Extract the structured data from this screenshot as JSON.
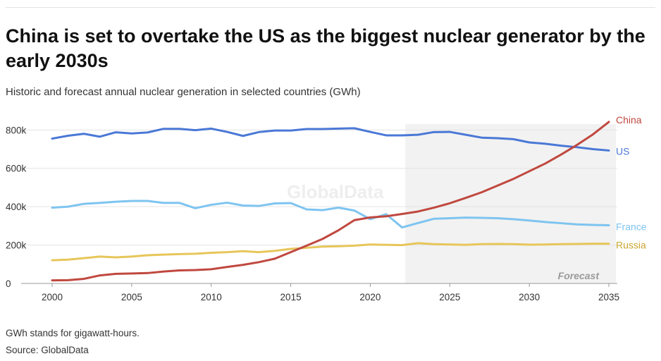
{
  "header": {
    "title": "China is set to overtake the US as the biggest nuclear generator by the early 2030s",
    "subtitle": "Historic and forecast annual nuclear generation in selected countries (GWh)"
  },
  "footer": {
    "footnote": "GWh stands for gigawatt-hours.",
    "source": "Source: GlobalData"
  },
  "watermark": "GlobalData",
  "chart_data": {
    "type": "line",
    "title": "China is set to overtake the US as the biggest nuclear generator by the early 2030s",
    "subtitle": "Historic and forecast annual nuclear generation in selected countries (GWh)",
    "xlabel": "",
    "ylabel": "",
    "xlim": [
      2000,
      2035
    ],
    "ylim": [
      0,
      860000
    ],
    "x_ticks": [
      2000,
      2005,
      2010,
      2015,
      2020,
      2025,
      2030,
      2035
    ],
    "y_ticks": [
      0,
      200000,
      400000,
      600000,
      800000
    ],
    "y_tick_labels": [
      "0",
      "200k",
      "400k",
      "600k",
      "800k"
    ],
    "grid": "horizontal",
    "forecast": {
      "start": 2022.2,
      "end": 2035,
      "label": "Forecast",
      "color": "#f2f2f2"
    },
    "x": [
      2000,
      2001,
      2002,
      2003,
      2004,
      2005,
      2006,
      2007,
      2008,
      2009,
      2010,
      2011,
      2012,
      2013,
      2014,
      2015,
      2016,
      2017,
      2018,
      2019,
      2020,
      2021,
      2022,
      2023,
      2024,
      2025,
      2026,
      2027,
      2028,
      2029,
      2030,
      2031,
      2032,
      2033,
      2034,
      2035
    ],
    "series": [
      {
        "name": "US",
        "color": "#4a78d6",
        "values": [
          755000,
          770000,
          780000,
          765000,
          788000,
          782000,
          787000,
          806000,
          806000,
          799000,
          807000,
          790000,
          769000,
          789000,
          797000,
          797000,
          805000,
          805000,
          807000,
          809000,
          790000,
          772000,
          772000,
          775000,
          789000,
          790000,
          775000,
          760000,
          757000,
          752000,
          735000,
          728000,
          718000,
          710000,
          700000,
          693000
        ]
      },
      {
        "name": "China",
        "color": "#c0483f",
        "values": [
          16000,
          17000,
          24000,
          42000,
          50000,
          52000,
          54000,
          62000,
          68000,
          70000,
          74000,
          86000,
          97000,
          111000,
          129000,
          163000,
          197000,
          232000,
          277000,
          330000,
          344000,
          350000,
          362000,
          375000,
          395000,
          418000,
          446000,
          475000,
          510000,
          545000,
          585000,
          625000,
          672000,
          722000,
          777000,
          842000
        ]
      },
      {
        "name": "France",
        "color": "#7ec4f0",
        "values": [
          395000,
          400000,
          415000,
          420000,
          426000,
          430000,
          430000,
          420000,
          420000,
          392000,
          410000,
          421000,
          406000,
          404000,
          417000,
          419000,
          386000,
          382000,
          395000,
          380000,
          335000,
          361000,
          292000,
          315000,
          337000,
          340000,
          343000,
          342000,
          340000,
          335000,
          328000,
          320000,
          314000,
          308000,
          305000,
          303000
        ]
      },
      {
        "name": "Russia",
        "color": "#e7c65a",
        "values": [
          121000,
          124000,
          132000,
          140000,
          136000,
          140000,
          147000,
          150000,
          153000,
          155000,
          160000,
          163000,
          168000,
          163000,
          170000,
          180000,
          186000,
          192000,
          194000,
          197000,
          203000,
          201000,
          200000,
          210000,
          205000,
          203000,
          201000,
          205000,
          206000,
          205000,
          202000,
          203000,
          205000,
          206000,
          207000,
          207000
        ]
      }
    ]
  }
}
